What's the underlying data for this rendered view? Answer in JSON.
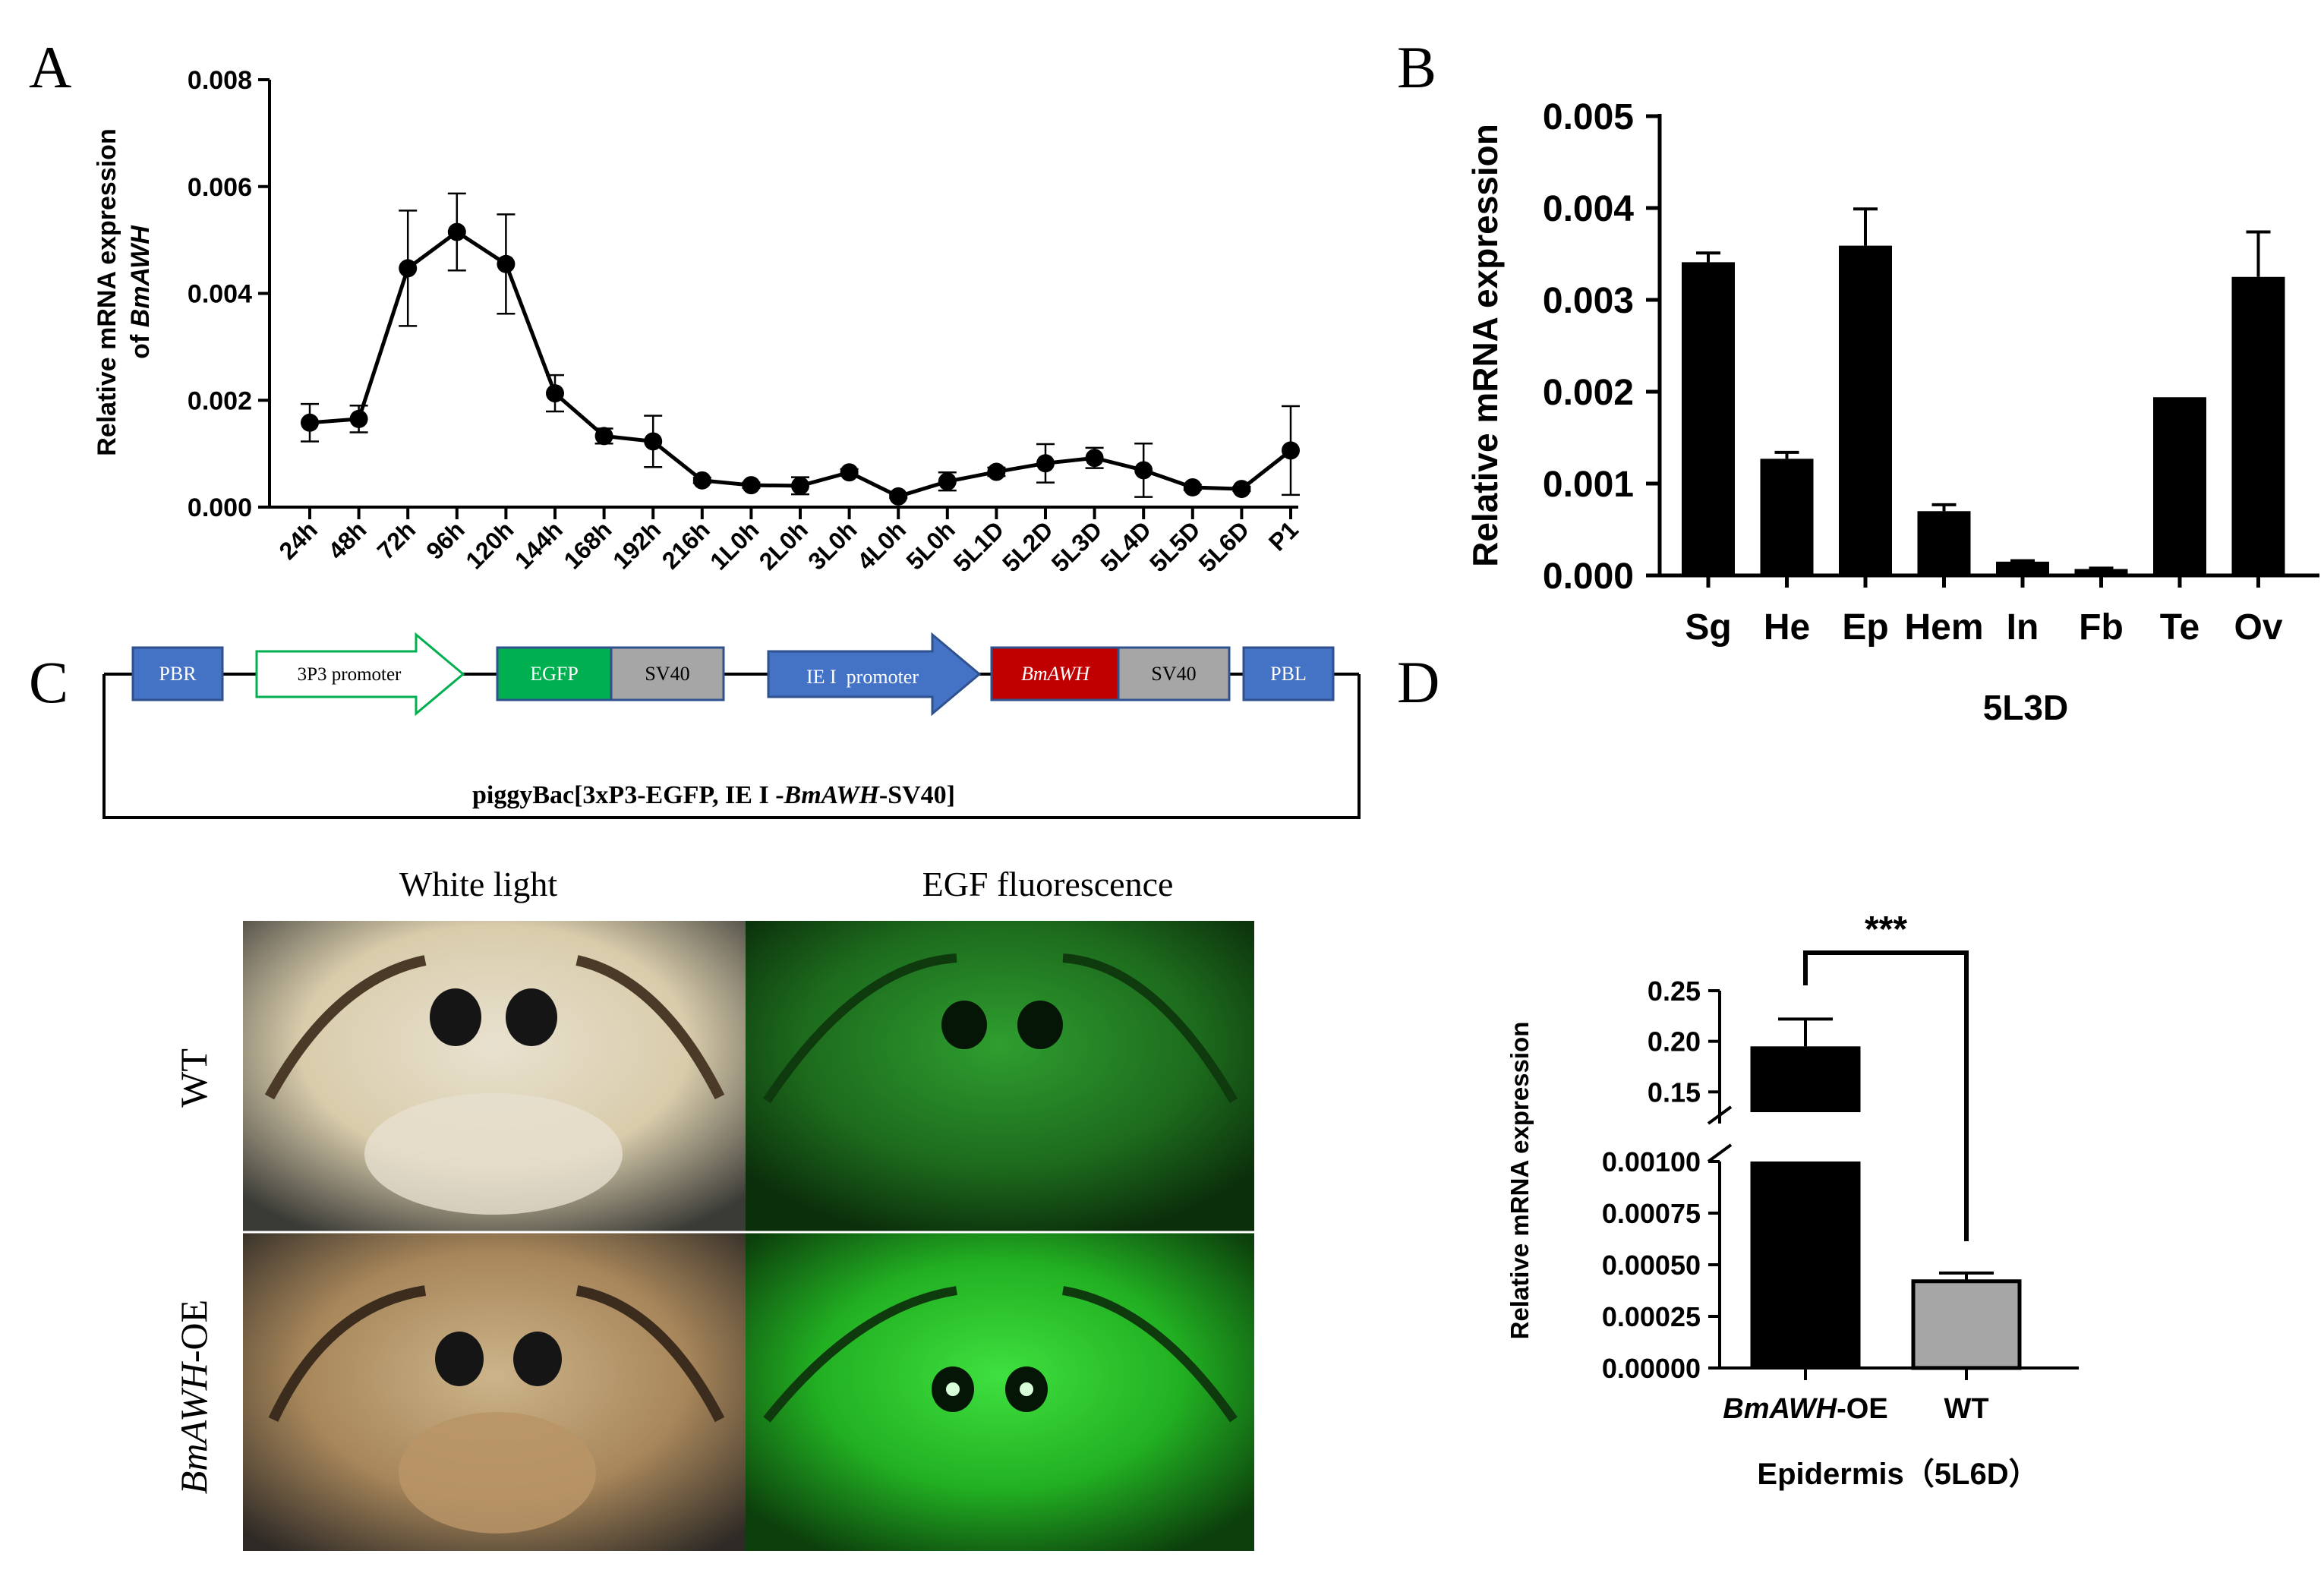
{
  "panels": {
    "a": "A",
    "b": "B",
    "c": "C",
    "d": "D"
  },
  "chart_data": [
    {
      "id": "A",
      "type": "line",
      "ylabel_line1": "Relative mRNA expression",
      "ylabel_line2_prefix": "of ",
      "ylabel_gene": "BmAWH",
      "categories": [
        "24h",
        "48h",
        "72h",
        "96h",
        "120h",
        "144h",
        "168h",
        "192h",
        "216h",
        "1L0h",
        "2L0h",
        "3L0h",
        "4L0h",
        "5L0h",
        "5L1D",
        "5L2D",
        "5L3D",
        "5L4D",
        "5L5D",
        "5L6D",
        "P1"
      ],
      "values": [
        0.00158,
        0.00165,
        0.00447,
        0.00515,
        0.00455,
        0.00213,
        0.00133,
        0.00123,
        0.0005,
        0.00041,
        0.0004,
        0.00065,
        0.0002,
        0.00048,
        0.00066,
        0.00082,
        0.00092,
        0.00069,
        0.00037,
        0.00034,
        0.00106
      ],
      "errors": [
        0.00035,
        0.00025,
        0.00108,
        0.00072,
        0.00093,
        0.00034,
        0.00014,
        0.00048,
        5e-05,
        5e-05,
        0.00016,
        6e-05,
        3e-05,
        0.00017,
        8e-05,
        0.00036,
        0.00019,
        0.0005,
        5e-05,
        4e-05,
        0.00083
      ],
      "ylim": [
        0,
        0.008
      ],
      "yticks": [
        "0.000",
        "0.002",
        "0.004",
        "0.006",
        "0.008"
      ],
      "ytick_values": [
        0,
        0.002,
        0.004,
        0.006,
        0.008
      ]
    },
    {
      "id": "B",
      "type": "bar",
      "title": "5L3D",
      "ylabel": "Relative mRNA expression",
      "categories": [
        "Sg",
        "He",
        "Ep",
        "Hem",
        "In",
        "Fb",
        "Te",
        "Ov"
      ],
      "values": [
        0.00341,
        0.00127,
        0.00359,
        0.0007,
        0.00015,
        7e-05,
        0.00194,
        0.00325
      ],
      "errors": [
        0.0001,
        7e-05,
        0.0004,
        7e-05,
        1e-05,
        1e-05,
        0,
        0.00049
      ],
      "ylim": [
        0,
        0.005
      ],
      "yticks": [
        "0.000",
        "0.001",
        "0.002",
        "0.003",
        "0.004",
        "0.005"
      ],
      "ytick_values": [
        0,
        0.001,
        0.002,
        0.003,
        0.004,
        0.005
      ]
    },
    {
      "id": "D",
      "type": "bar",
      "broken_axis": true,
      "xlabel": "Epidermis（5L6D）",
      "ylabel": "Relative mRNA expression",
      "categories_gene": "BmAWH",
      "categories_suffix": "-OE",
      "category_wt": "WT",
      "values": [
        0.195,
        0.00042
      ],
      "errors": [
        0.027,
        4e-05
      ],
      "colors": [
        "#000000",
        "#a6a6a6"
      ],
      "upper_range": [
        0.13,
        0.25
      ],
      "upper_ticks": [
        "0.15",
        "0.20",
        "0.25"
      ],
      "upper_tick_values": [
        0.15,
        0.2,
        0.25
      ],
      "lower_range": [
        0,
        0.001
      ],
      "lower_ticks": [
        "0.00000",
        "0.00025",
        "0.00050",
        "0.00075",
        "0.00100"
      ],
      "lower_tick_values": [
        0,
        0.00025,
        0.0005,
        0.00075,
        0.001
      ],
      "significance": "***"
    }
  ],
  "construct": {
    "pbr": "PBR",
    "p3p3": "3P3 promoter",
    "egfp": "EGFP",
    "sv40_a": "SV40",
    "ie1": "IE I  promoter",
    "bmawh": "BmAWH",
    "sv40_b": "SV40",
    "pbl": "PBL",
    "caption_prefix": "piggyBac[3xP3-EGFP, IE I -",
    "caption_gene": "BmAWH",
    "caption_suffix": "-SV40]"
  },
  "images": {
    "col_white": "White light",
    "col_egf": "EGF fluorescence",
    "row_wt": "WT",
    "row_oe_gene": "BmAWH",
    "row_oe_suffix": "-OE"
  },
  "colors": {
    "blue": "#4472c4",
    "green": "#00b050",
    "red": "#c00000",
    "gray": "#a6a6a6"
  }
}
